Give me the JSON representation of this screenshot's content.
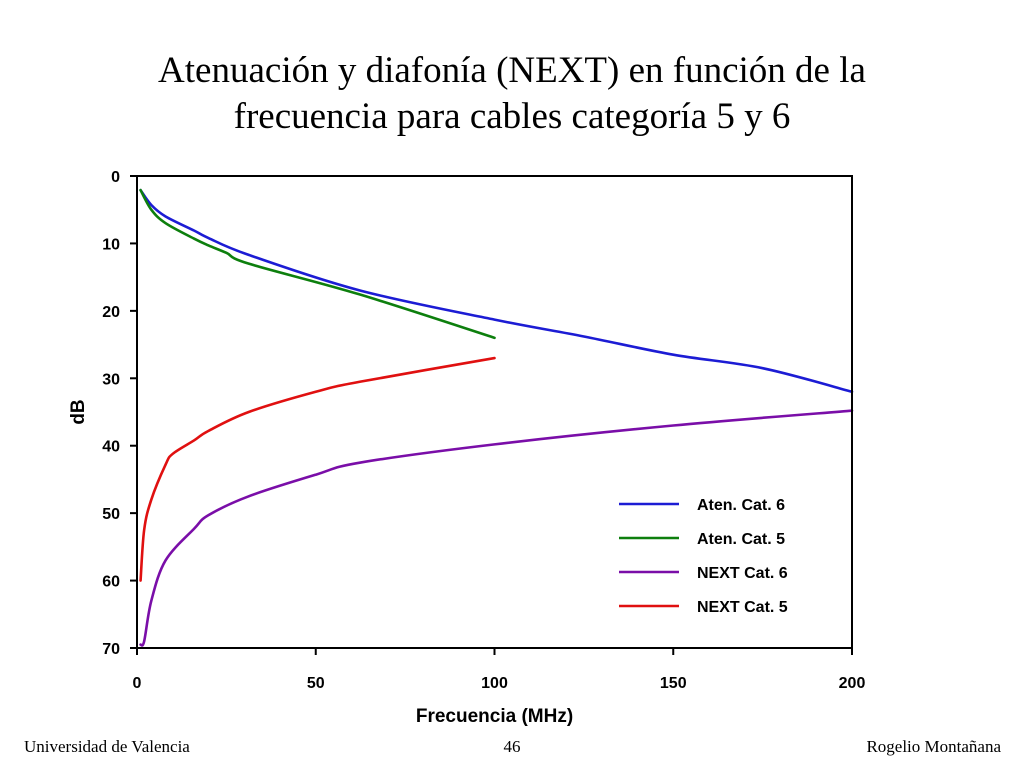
{
  "title": {
    "line1": "Atenuación y diafonía (NEXT) en función de la",
    "line2": "frecuencia para cables categoría 5 y 6"
  },
  "footer": {
    "left": "Universidad de Valencia",
    "center": "46",
    "right": "Rogelio Montañana"
  },
  "chart_data": {
    "type": "line",
    "title": "",
    "xlabel": "Frecuencia (MHz)",
    "ylabel": "dB",
    "xlim": [
      0,
      200
    ],
    "ylim": [
      0,
      70
    ],
    "y_inverted": true,
    "x_ticks": [
      0,
      50,
      100,
      150,
      200
    ],
    "y_ticks": [
      0,
      10,
      20,
      30,
      40,
      50,
      60,
      70
    ],
    "grid": false,
    "legend_position": "lower-right",
    "series": [
      {
        "name": "Aten. Cat. 6",
        "color": "#1c1cd4",
        "x": [
          1,
          4,
          8,
          16,
          20,
          31.25,
          62.5,
          100,
          125,
          150,
          175,
          200
        ],
        "y": [
          2.1,
          4.3,
          6,
          8.1,
          9.2,
          11.7,
          17,
          21.3,
          23.8,
          26.5,
          28.5,
          32
        ]
      },
      {
        "name": "Aten. Cat. 5",
        "color": "#0d7f0d",
        "x": [
          1,
          4,
          8,
          16,
          20,
          25,
          31.25,
          62.5,
          100
        ],
        "y": [
          2.1,
          5,
          7,
          9.3,
          10.3,
          11.4,
          13,
          17.6,
          24
        ]
      },
      {
        "name": "NEXT Cat. 6",
        "color": "#7a0ea8",
        "x": [
          1,
          2,
          4,
          8,
          16,
          20,
          31.25,
          50,
          62.5,
          100,
          150,
          200
        ],
        "y": [
          69.5,
          69,
          63,
          57,
          52.3,
          50.3,
          47.5,
          44.3,
          42.5,
          39.8,
          37,
          34.8
        ]
      },
      {
        "name": "NEXT Cat. 5",
        "color": "#e01010",
        "x": [
          1,
          2,
          4,
          8,
          10,
          16,
          20,
          31.25,
          50,
          62.5,
          100
        ],
        "y": [
          60,
          52.5,
          48,
          42.8,
          41.2,
          39.2,
          37.8,
          35,
          32,
          30.5,
          27
        ]
      }
    ]
  }
}
